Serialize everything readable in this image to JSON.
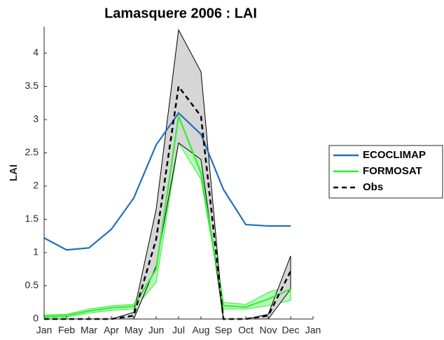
{
  "chart_data": {
    "type": "line",
    "title": "Lamasquere 2006 : LAI",
    "y_label": "LAI",
    "categories": [
      "Jan",
      "Feb",
      "Mar",
      "Apr",
      "May",
      "Jun",
      "Jul",
      "Aug",
      "Sep",
      "Oct",
      "Nov",
      "Dec",
      "Jan"
    ],
    "ylim": [
      0,
      4.4
    ],
    "yticks": [
      0,
      0.5,
      1,
      1.5,
      2,
      2.5,
      3,
      3.5,
      4
    ],
    "series": [
      {
        "name": "ECOCLIMAP",
        "color": "#1f6fbf",
        "values": [
          1.22,
          1.04,
          1.07,
          1.35,
          1.82,
          2.62,
          3.1,
          2.78,
          1.95,
          1.42,
          1.4,
          1.4,
          null
        ]
      },
      {
        "name": "FORMOSAT",
        "color": "#33ee33",
        "values": [
          0.04,
          0.05,
          0.12,
          0.17,
          0.19,
          0.75,
          3.05,
          2.2,
          0.2,
          0.18,
          0.3,
          0.45,
          null
        ],
        "upper": [
          0.06,
          0.07,
          0.15,
          0.2,
          0.22,
          0.9,
          3.45,
          2.45,
          0.25,
          0.22,
          0.4,
          0.5,
          null
        ],
        "lower": [
          0.02,
          0.03,
          0.09,
          0.13,
          0.15,
          0.55,
          2.65,
          2.1,
          0.15,
          0.15,
          0.2,
          0.28,
          null
        ]
      },
      {
        "name": "Obs",
        "color": "#000000",
        "dashed": true,
        "values": [
          0,
          0,
          0,
          0,
          0.05,
          1.2,
          3.5,
          3.05,
          0,
          0,
          0.05,
          0.72,
          null
        ],
        "upper": [
          0,
          0,
          0,
          0,
          0.1,
          1.65,
          4.35,
          3.72,
          0,
          0,
          0.07,
          0.95,
          null
        ],
        "lower": [
          0,
          0,
          0,
          0,
          0,
          0.8,
          2.65,
          2.4,
          0,
          0,
          0,
          0.45,
          null
        ]
      }
    ]
  }
}
